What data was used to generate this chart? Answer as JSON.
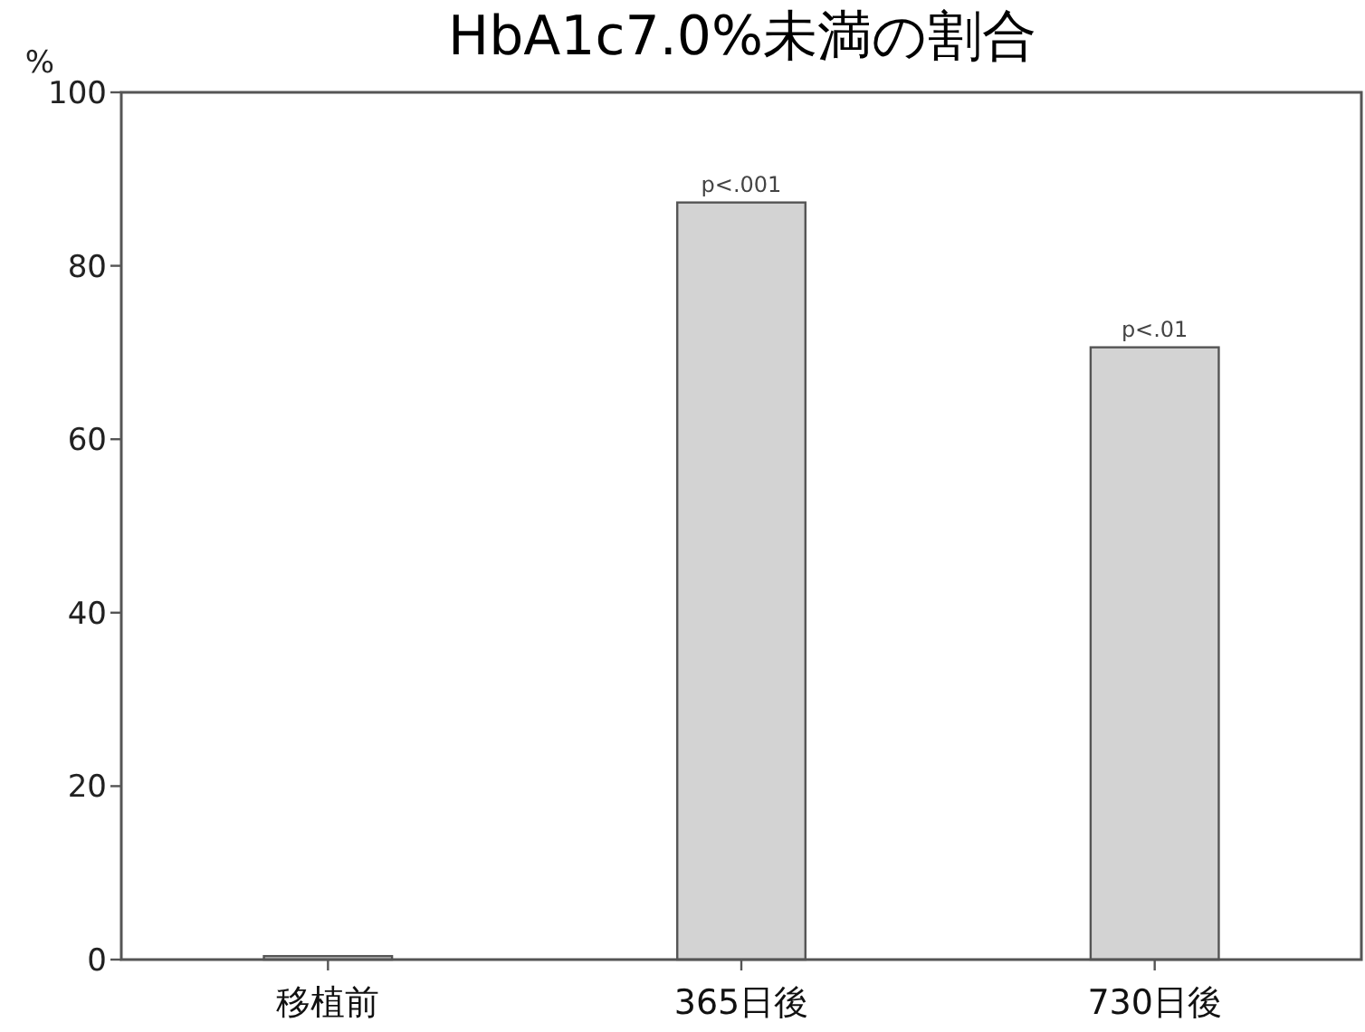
{
  "chart_data": {
    "type": "bar",
    "title": "HbA1c7.0%未満の割合",
    "ylabel": "%",
    "categories": [
      "移植前",
      "365日後",
      "730日後"
    ],
    "values": [
      0.4,
      87.3,
      70.6
    ],
    "color": "#d3d3d3",
    "ylim": [
      0,
      100
    ],
    "yticks": [
      0,
      20,
      40,
      60,
      80,
      100
    ],
    "grid": false,
    "annotations": [
      {
        "text": "p<.001",
        "x": "365日後",
        "y": 87.3
      },
      {
        "text": "p<.01",
        "x": "730日後",
        "y": 70.6
      }
    ]
  }
}
